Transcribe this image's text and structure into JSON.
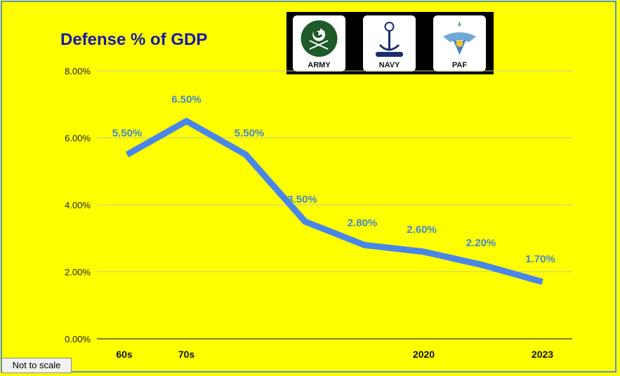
{
  "chart_data": {
    "type": "line",
    "title": "Defense % of GDP",
    "categories": [
      "60s",
      "70s",
      "",
      "",
      "",
      "2020",
      "",
      "2023"
    ],
    "values": [
      5.5,
      6.5,
      5.5,
      3.5,
      2.8,
      2.6,
      2.2,
      1.7
    ],
    "data_labels": [
      "5.50%",
      "6.50%",
      "5.50%",
      "3.50%",
      "2.80%",
      "2.60%",
      "2.20%",
      "1.70%"
    ],
    "yticks": [
      0,
      2,
      4,
      6,
      8
    ],
    "ytick_labels": [
      "0.00%",
      "2.00%",
      "4.00%",
      "6.00%",
      "8.00%"
    ],
    "ylim": [
      0,
      8
    ],
    "grid": true,
    "line_color": "#4a86e8",
    "label_color": "#4a86c8"
  },
  "logos": [
    {
      "name": "army",
      "caption": "ARMY"
    },
    {
      "name": "navy",
      "caption": "NAVY"
    },
    {
      "name": "paf",
      "caption": "PAF"
    }
  ],
  "note": "Not to scale",
  "colors": {
    "background": "#ffff00",
    "title": "#1a1aa6",
    "frame": "#5b8fd6"
  }
}
